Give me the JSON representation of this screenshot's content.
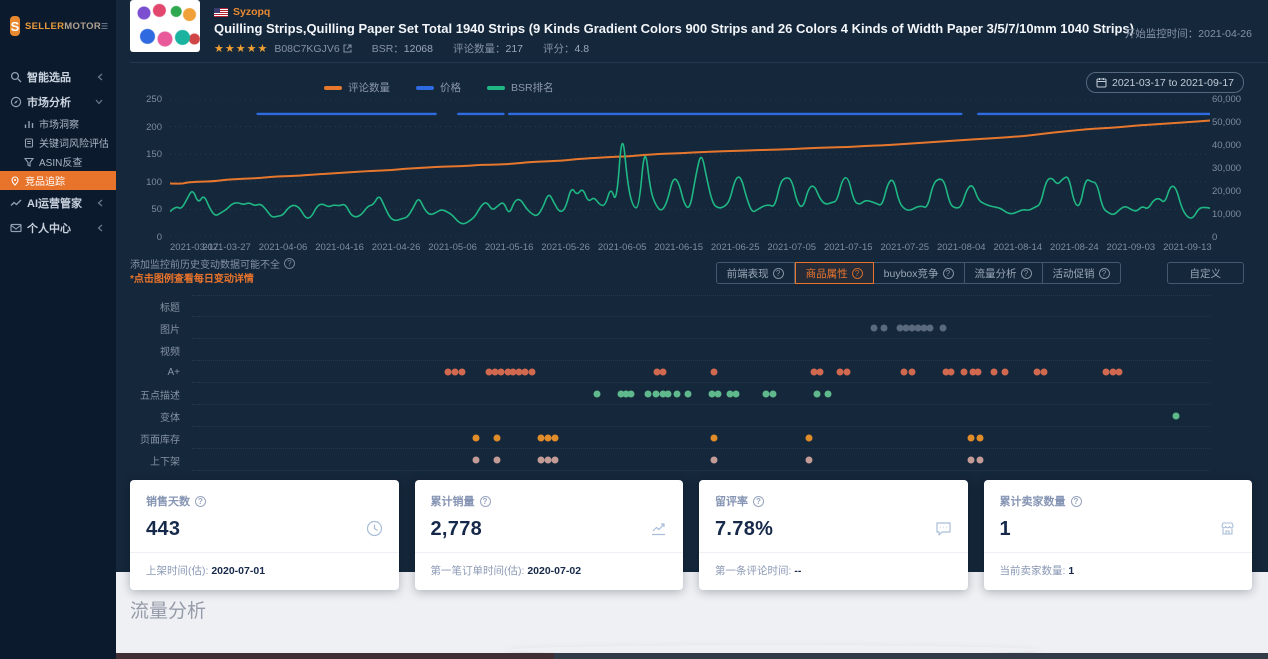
{
  "glyphs": {
    "help": "?"
  },
  "sidebar": {
    "brand": {
      "mark": "S",
      "name_left": "SELLER",
      "name_right": "MOTOR"
    },
    "items": [
      {
        "label": "智能选品"
      },
      {
        "label": "市场分析"
      },
      {
        "label": "市场洞察"
      },
      {
        "label": "关键词风险评估"
      },
      {
        "label": "ASIN反查"
      },
      {
        "label": "竞品追踪"
      },
      {
        "label": "AI运营管家"
      },
      {
        "label": "个人中心"
      }
    ]
  },
  "product": {
    "brand": "Syzopq",
    "title": "Quilling Strips,Quilling Paper Set Total 1940 Strips (9 Kinds Gradient Colors 900 Strips and 26 Colors 4 Kinds of Width Paper 3/5/7/10mm 1040 Strips)",
    "stars": "★★★★★",
    "asin": "B08C7KGJV6",
    "bsr_label": "BSR：",
    "bsr": "12068",
    "reviews_label": "评论数量：",
    "reviews": "217",
    "rating_label": "评分：",
    "rating": "4.8"
  },
  "monitor": {
    "label": "开始监控时间：",
    "value": "2021-04-26"
  },
  "date_range": "2021-03-17 to 2021-09-17",
  "notes": {
    "line1": "添加监控前历史变动数据可能不全",
    "line2": "*点击图例查看每日变动详情"
  },
  "tabs": [
    {
      "label": "前端表现",
      "active": false
    },
    {
      "label": "商品属性",
      "active": true
    },
    {
      "label": "buybox竞争",
      "active": false
    },
    {
      "label": "流量分析",
      "active": false
    },
    {
      "label": "活动促销",
      "active": false
    }
  ],
  "custom_button": "自定义",
  "timeline": {
    "rows": [
      {
        "label": "标题",
        "color": "#d0694f",
        "dots": []
      },
      {
        "label": "图片",
        "color": "#5a6a7d",
        "dots": [
          67.0,
          68.0,
          69.5,
          70.1,
          70.7,
          71.3,
          71.9,
          72.5,
          73.8
        ]
      },
      {
        "label": "视频",
        "color": "#5a6a7d",
        "dots": []
      },
      {
        "label": "A+",
        "color": "#d0694f",
        "dots": [
          25.1,
          25.8,
          26.5,
          29.2,
          29.8,
          30.4,
          31.0,
          31.5,
          32.1,
          32.7,
          33.4,
          45.7,
          46.3,
          51.3,
          61.1,
          61.7,
          63.7,
          64.3,
          69.9,
          70.7,
          74.1,
          74.6,
          75.8,
          76.7,
          77.2,
          78.8,
          79.9,
          83.0,
          83.7,
          89.8,
          90.5,
          91.1
        ]
      },
      {
        "label": "五点描述",
        "color": "#5fb98c",
        "dots": [
          39.8,
          42.1,
          42.6,
          43.1,
          44.8,
          45.6,
          46.3,
          46.8,
          47.6,
          48.7,
          51.1,
          51.7,
          52.8,
          53.4,
          56.4,
          57.1,
          61.4,
          62.5
        ]
      },
      {
        "label": "变体",
        "color": "#5fb98c",
        "dots": [
          96.7
        ]
      },
      {
        "label": "页面库存",
        "color": "#e08c28",
        "dots": [
          27.9,
          30.0,
          34.3,
          35.0,
          35.7,
          51.3,
          60.6,
          76.5,
          77.4
        ]
      },
      {
        "label": "上下架",
        "color": "#c49c97",
        "dots": [
          27.9,
          30.0,
          34.3,
          35.0,
          35.7,
          51.3,
          60.6,
          76.5,
          77.4
        ]
      }
    ]
  },
  "cards": [
    {
      "label": "销售天数",
      "value": "443",
      "icon": "clock-icon",
      "footer_label": "上架时间(估): ",
      "footer_value": "2020-07-01"
    },
    {
      "label": "累计销量",
      "value": "2,778",
      "icon": "sales-trend-icon",
      "footer_label": "第一笔订单时间(估): ",
      "footer_value": "2020-07-02"
    },
    {
      "label": "留评率",
      "value": "7.78%",
      "icon": "comment-icon",
      "footer_label": "第一条评论时间: ",
      "footer_value": "--"
    },
    {
      "label": "累计卖家数量",
      "value": "1",
      "icon": "sellers-icon",
      "footer_label": "当前卖家数量: ",
      "footer_value": "1"
    }
  ],
  "section_title": "流量分析",
  "chart_data": {
    "type": "line",
    "x_axis": {
      "domain_days": [
        0,
        184
      ],
      "start_date": "2021-03-17",
      "tick_step_days": 10,
      "tick_labels": [
        "2021-03-17",
        "2021-03-27",
        "2021-04-06",
        "2021-04-16",
        "2021-04-26",
        "2021-05-06",
        "2021-05-16",
        "2021-05-26",
        "2021-06-05",
        "2021-06-15",
        "2021-06-25",
        "2021-07-05",
        "2021-07-15",
        "2021-07-25",
        "2021-08-04",
        "2021-08-14",
        "2021-08-24",
        "2021-09-03",
        "2021-09-13"
      ]
    },
    "y_left": {
      "range": [
        0,
        250
      ],
      "ticks": [
        0,
        50,
        100,
        150,
        200,
        250
      ]
    },
    "y_right": {
      "range": [
        0,
        60000
      ],
      "tick_labels": [
        "0",
        "10,000",
        "20,000",
        "30,000",
        "40,000",
        "50,000",
        "60,000"
      ]
    },
    "grid": "horizontal-dotted",
    "legend_position": "top-left",
    "series": [
      {
        "name": "评论数量",
        "color": "#e8772e",
        "axis": "left",
        "points": [
          [
            0,
            97
          ],
          [
            2,
            96
          ],
          [
            3,
            99
          ],
          [
            5,
            100
          ],
          [
            8,
            101
          ],
          [
            10,
            104
          ],
          [
            12,
            105
          ],
          [
            14,
            106
          ],
          [
            16,
            107
          ],
          [
            18,
            109
          ],
          [
            20,
            110
          ],
          [
            23,
            111
          ],
          [
            25,
            113
          ],
          [
            27,
            114
          ],
          [
            30,
            116
          ],
          [
            33,
            118
          ],
          [
            36,
            120
          ],
          [
            39,
            121
          ],
          [
            41,
            123
          ],
          [
            44,
            125
          ],
          [
            47,
            127
          ],
          [
            50,
            128
          ],
          [
            53,
            129
          ],
          [
            55,
            131
          ],
          [
            58,
            131
          ],
          [
            61,
            133
          ],
          [
            63,
            135
          ],
          [
            66,
            137
          ],
          [
            69,
            138
          ],
          [
            71,
            140
          ],
          [
            73,
            142
          ],
          [
            75,
            143
          ],
          [
            78,
            145
          ],
          [
            81,
            146
          ],
          [
            83,
            148
          ],
          [
            86,
            150
          ],
          [
            88,
            151
          ],
          [
            91,
            152
          ],
          [
            94,
            154
          ],
          [
            97,
            155
          ],
          [
            100,
            156
          ],
          [
            103,
            157
          ],
          [
            106,
            158
          ],
          [
            110,
            159
          ],
          [
            113,
            161
          ],
          [
            116,
            162
          ],
          [
            120,
            163
          ],
          [
            123,
            165
          ],
          [
            126,
            166
          ],
          [
            129,
            168
          ],
          [
            132,
            170
          ],
          [
            135,
            172
          ],
          [
            138,
            174
          ],
          [
            141,
            176
          ],
          [
            144,
            178
          ],
          [
            147,
            180
          ],
          [
            150,
            182
          ],
          [
            153,
            185
          ],
          [
            156,
            189
          ],
          [
            159,
            192
          ],
          [
            162,
            195
          ],
          [
            165,
            197
          ],
          [
            168,
            199
          ],
          [
            171,
            202
          ],
          [
            174,
            204
          ],
          [
            177,
            206
          ],
          [
            180,
            208
          ],
          [
            184,
            211
          ]
        ]
      },
      {
        "name": "价格",
        "color": "#2e6ae0",
        "axis": "right",
        "style": "flat-segments",
        "level": 53500,
        "segments_days": [
          [
            15.5,
            47
          ],
          [
            51,
            59
          ],
          [
            60,
            140
          ],
          [
            143,
            184
          ]
        ]
      },
      {
        "name": "BSR排名",
        "color": "#1fb884",
        "axis": "right",
        "sampling": "daily",
        "values_daily": [
          11000,
          13500,
          12000,
          16500,
          21000,
          14500,
          18500,
          12500,
          9000,
          10500,
          12000,
          14500,
          15000,
          14000,
          15000,
          13500,
          14500,
          12000,
          8500,
          9000,
          9500,
          13000,
          14000,
          12500,
          8000,
          8500,
          13500,
          14500,
          13000,
          14000,
          13500,
          14500,
          9500,
          8500,
          10000,
          13500,
          14000,
          18500,
          13000,
          8000,
          7000,
          8000,
          8500,
          12500,
          17500,
          12000,
          9500,
          10500,
          12000,
          11000,
          9500,
          6500,
          5500,
          7000,
          9000,
          13500,
          15500,
          11500,
          13500,
          15500,
          9500,
          16000,
          16500,
          12500,
          10000,
          9000,
          13000,
          19500,
          14500,
          10500,
          12500,
          22000,
          18000,
          21500,
          15000,
          17500,
          14000,
          13500,
          22000,
          14000,
          48000,
          22000,
          12500,
          13000,
          41000,
          20000,
          13500,
          11000,
          15500,
          26000,
          24000,
          14000,
          12000,
          26500,
          37500,
          25000,
          14500,
          12500,
          13000,
          15500,
          25500,
          26500,
          17000,
          10500,
          12000,
          13500,
          14000,
          13000,
          24000,
          26000,
          25000,
          14500,
          12500,
          21500,
          22500,
          16500,
          14000,
          15000,
          15500,
          25500,
          26000,
          15500,
          14000,
          16000,
          15500,
          14500,
          13500,
          23500,
          25500,
          15000,
          12000,
          11500,
          13000,
          13500,
          12500,
          23000,
          25500,
          24500,
          14000,
          12500,
          13000,
          21000,
          23000,
          16000,
          14500,
          13500,
          13000,
          12500,
          10500,
          10000,
          11000,
          12000,
          11500,
          13000,
          14000,
          24500,
          26000,
          22500,
          25500,
          26500,
          14500,
          13000,
          25500,
          24000,
          23500,
          12500,
          10500,
          9500,
          12000,
          13500,
          12000,
          11000,
          13500,
          12000,
          16000,
          17000,
          14500,
          22500,
          21500,
          12500,
          8500,
          8000,
          12500,
          13000,
          12500
        ]
      }
    ]
  }
}
